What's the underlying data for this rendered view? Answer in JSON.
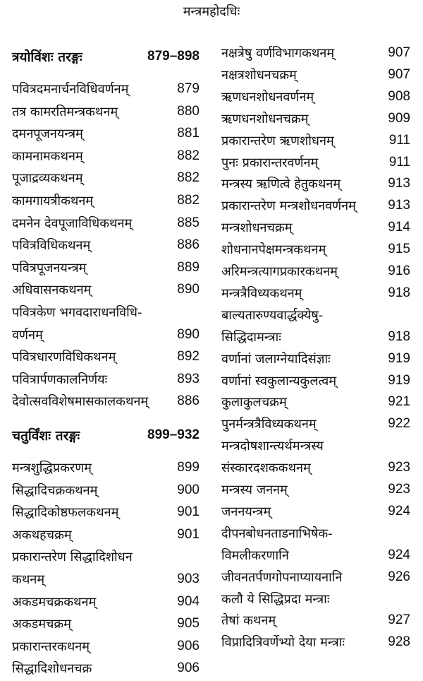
{
  "page_title": "मन्त्रमहोदधिः",
  "left_column": [
    {
      "type": "heading",
      "title": "त्रयोविंशः तरङ्गः",
      "pages": "879–898"
    },
    {
      "title": "पवित्रदमनार्चनविधिवर्णनम्",
      "page": "879"
    },
    {
      "title": "तत्र कामरतिमन्त्रकथनम्",
      "page": "880"
    },
    {
      "title": "दमनपूजनयन्त्रम्",
      "page": "881"
    },
    {
      "title": "कामनामकथनम्",
      "page": "882"
    },
    {
      "title": "पूजाद्रव्यकथनम्",
      "page": "882"
    },
    {
      "title": "कामगायत्रीकथनम्",
      "page": "882"
    },
    {
      "title": "दमनेन देवपूजाविधिकथनम्",
      "page": "885"
    },
    {
      "title": "पवित्रविधिकथनम्",
      "page": "886"
    },
    {
      "title": "पवित्रपूजनयन्त्रम्",
      "page": "889"
    },
    {
      "title": "अधिवासनकथनम्",
      "page": "890"
    },
    {
      "title": "पवित्रकेण भगवदाराधनविधि-",
      "page": ""
    },
    {
      "title": "वर्णनम्",
      "page": "890"
    },
    {
      "title": "पवित्रधारणविधिकथनम्",
      "page": "892"
    },
    {
      "title": "पवित्रार्पणकालनिर्णयः",
      "page": "893"
    },
    {
      "title": "देवोत्सवविशेषमासकालकथनम्",
      "page": "886"
    },
    {
      "type": "heading",
      "title": "चतुर्विंशः तरङ्गः",
      "pages": "899–932"
    },
    {
      "title": "मन्त्रशुद्धिप्रकरणम्",
      "page": "899"
    },
    {
      "title": "सिद्धादिचक्रकथनम्",
      "page": "900"
    },
    {
      "title": "सिद्धादिकोष्ठफलकथनम्",
      "page": "901"
    },
    {
      "title": "अकथहचक्रम्",
      "page": "901"
    },
    {
      "title": "प्रकारान्तरेण सिद्धादिशोधन",
      "page": ""
    },
    {
      "title": "कथनम्",
      "page": "903"
    },
    {
      "title": "अकडमचक्रकथनम्",
      "page": "904"
    },
    {
      "title": "अकडमचक्रम्",
      "page": "905"
    },
    {
      "title": "प्रकारान्तरकथनम्",
      "page": "906"
    },
    {
      "title": "सिद्धादिशोधनचक्र",
      "page": "906"
    }
  ],
  "right_column": [
    {
      "title": "नक्षत्रेषु वर्णविभागकथनम्",
      "page": "907"
    },
    {
      "title": "नक्षत्रशोधनचक्रम्",
      "page": "907"
    },
    {
      "title": "ऋणधनशोधनवर्णनम्",
      "page": "908"
    },
    {
      "title": "ऋणधनशोधनचक्रम्",
      "page": "909"
    },
    {
      "title": "प्रकारान्तरेण ऋणशोधनम्",
      "page": "911"
    },
    {
      "title": "पुनः प्रकारान्तरवर्णनम्",
      "page": "911"
    },
    {
      "title": "मन्त्रस्य ऋणित्वे हेतुकथनम्",
      "page": "913"
    },
    {
      "title": "प्रकारान्तरेण मन्त्रशोधनवर्णनम्",
      "page": "913"
    },
    {
      "title": "मन्त्रशोधनचक्रम्",
      "page": "914"
    },
    {
      "title": "शोधनानपेक्षमन्त्रकथनम्",
      "page": "915"
    },
    {
      "title": "अरिमन्त्रत्यागप्रकारकथनम्",
      "page": "916"
    },
    {
      "title": "मन्त्रत्रैविध्यकथनम्",
      "page": "918"
    },
    {
      "title": "बाल्यतारुण्यवार्द्धक्येषु-",
      "page": ""
    },
    {
      "title": "सिद्धिदामन्त्राः",
      "page": "918"
    },
    {
      "title": "वर्णानां जलाग्नेयादिसंज्ञाः",
      "page": "919"
    },
    {
      "title": "वर्णानां स्वकुलान्यकुलत्वम्",
      "page": "919"
    },
    {
      "title": "कुलाकुलचक्रम्",
      "page": "921"
    },
    {
      "title": "पुनर्मन्त्रत्रैविध्यकथनम्",
      "page": "922"
    },
    {
      "title": "मन्त्रदोषशान्त्यर्थमन्त्रस्य",
      "page": ""
    },
    {
      "title": "संस्कारदशककथनम्",
      "page": "923"
    },
    {
      "title": "मन्त्रस्य जननम्",
      "page": "923"
    },
    {
      "title": "जननयन्त्रम्",
      "page": "924"
    },
    {
      "title": "दीपनबोधनताडनाभिषेक-",
      "page": ""
    },
    {
      "title": "विमलीकरणानि",
      "page": "924"
    },
    {
      "title": "जीवनतर्पणगोपनाप्यायनानि",
      "page": "926"
    },
    {
      "title": "कलौ ये सिद्धिप्रदा मन्त्राः",
      "page": ""
    },
    {
      "title": "तेषां कथनम्",
      "page": "927"
    },
    {
      "title": "विप्रादित्रिवर्णेभ्यो देया मन्त्राः",
      "page": "928"
    }
  ]
}
